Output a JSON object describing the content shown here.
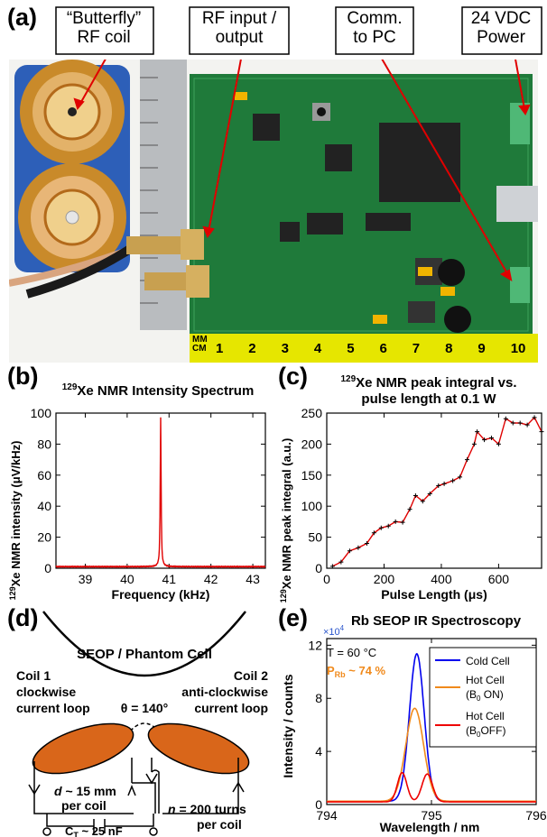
{
  "panel_a": {
    "letter": "(a)",
    "callouts": [
      {
        "line1": "“Butterfly”",
        "line2": "RF coil"
      },
      {
        "line1": "RF input /",
        "line2": "output"
      },
      {
        "line1": "Comm.",
        "line2": "to PC"
      },
      {
        "line1": "24 VDC",
        "line2": "Power"
      }
    ],
    "ruler": {
      "unit_top": "MM",
      "unit_bottom": "CM",
      "ticks": [
        "1",
        "2",
        "3",
        "4",
        "5",
        "6",
        "7",
        "8",
        "9",
        "10",
        "1"
      ]
    },
    "colors": {
      "board": "#1f7a3a",
      "ruler": "#e6e600",
      "coil": "#c98a2a",
      "arrow": "#e00000"
    }
  },
  "panel_b": {
    "letter": "(b)",
    "title_sup": "129",
    "title_rest": "Xe NMR Intensity Spectrum",
    "ylabel_sup": "129",
    "ylabel_rest": "Xe NMR intensity (μV/kHz)",
    "xlabel": "Frequency (kHz)"
  },
  "panel_c": {
    "letter": "(c)",
    "title_sup": "129",
    "title_line1_rest": "Xe NMR peak integral vs.",
    "title_line2": "pulse length at 0.1 W",
    "ylabel_sup": "129",
    "ylabel_rest": "Xe NMR peak integral (a.u.)",
    "xlabel": "Pulse Length (μs)"
  },
  "panel_d": {
    "letter": "(d)",
    "cell_label": "SEOP / Phantom Cell",
    "coil1": [
      "Coil 1",
      "clockwise",
      "current loop"
    ],
    "coil2": [
      "Coil 2",
      "anti-clockwise",
      "current loop"
    ],
    "theta": "θ = 140°",
    "d_label_var": "d",
    "d_label_rest": " ~ 15 mm",
    "d_label_line2": "per coil",
    "n_label_var": "n",
    "n_label_rest": " = 200 turns",
    "n_label_line2": "per coil",
    "ct_main": "C",
    "ct_sub": "T",
    "ct_rest": " ~ 25 nF",
    "coil_color": "#d9661a"
  },
  "panel_e": {
    "letter": "(e)",
    "title": "Rb SEOP IR Spectroscopy",
    "ylabel": "Intensity / counts",
    "xlabel": "Wavelength / nm",
    "multiplier_base": "×10",
    "multiplier_exp": "4",
    "temp_label": "T = 60 °C",
    "prb_main": "P",
    "prb_sub": "Rb",
    "prb_rest": " ~ 74 %",
    "legend": [
      {
        "line1": "Cold Cell",
        "line2": "",
        "color": "#0000ee"
      },
      {
        "line1": "Hot Cell",
        "line2": "(B0 ON)",
        "sub_line2_prefix": "(B",
        "sub_line2_sub": "0",
        "sub_line2_rest": " ON)",
        "color": "#f08a1c"
      },
      {
        "line1": "Hot Cell",
        "line2": "(B0OFF)",
        "sub_line2_prefix": "(B",
        "sub_line2_sub": "0",
        "sub_line2_rest": "OFF)",
        "color": "#ee0000"
      }
    ]
  },
  "chart_data": [
    {
      "type": "line",
      "panel": "b",
      "title": "129Xe NMR Intensity Spectrum",
      "xlabel": "Frequency (kHz)",
      "ylabel": "129Xe NMR intensity (μV/kHz)",
      "xlim": [
        38.3,
        43.3
      ],
      "ylim": [
        0,
        100
      ],
      "xticks": [
        "39",
        "40",
        "41",
        "42",
        "43"
      ],
      "yticks": [
        "0",
        "20",
        "40",
        "60",
        "80",
        "100"
      ],
      "color": "#e00000",
      "peak_center": 40.8,
      "peak_height": 97,
      "baseline": 1
    },
    {
      "type": "line",
      "panel": "c",
      "title": "129Xe NMR peak integral vs. pulse length at 0.1 W",
      "xlabel": "Pulse Length (μs)",
      "ylabel": "129Xe NMR peak integral (a.u.)",
      "xlim": [
        0,
        750
      ],
      "ylim": [
        0,
        250
      ],
      "xticks": [
        "0",
        "200",
        "400",
        "600"
      ],
      "yticks": [
        "0",
        "50",
        "100",
        "150",
        "200",
        "250"
      ],
      "color": "#e00000",
      "x": [
        20,
        50,
        80,
        110,
        140,
        165,
        190,
        215,
        240,
        265,
        290,
        310,
        335,
        360,
        390,
        410,
        440,
        465,
        490,
        515,
        525,
        550,
        575,
        600,
        625,
        650,
        675,
        700,
        725,
        750
      ],
      "y": [
        3,
        10,
        28,
        33,
        40,
        57,
        65,
        68,
        75,
        74,
        95,
        117,
        108,
        120,
        133,
        136,
        141,
        147,
        175,
        200,
        220,
        207,
        210,
        200,
        241,
        234,
        234,
        231,
        243,
        220
      ]
    },
    {
      "type": "line",
      "panel": "e",
      "title": "Rb SEOP IR Spectroscopy",
      "xlabel": "Wavelength / nm",
      "ylabel": "Intensity / counts",
      "xlim": [
        794,
        796
      ],
      "ylim": [
        0,
        12.5
      ],
      "xticks": [
        "794",
        "795",
        "796"
      ],
      "yticks": [
        "0",
        "4",
        "8",
        "12"
      ],
      "series": [
        {
          "name": "Cold Cell",
          "color": "#0000ee",
          "peaks": [
            {
              "center": 794.86,
              "height": 11.1,
              "width": 0.07
            }
          ],
          "baseline": 0.25
        },
        {
          "name": "Hot Cell (B0 ON)",
          "color": "#f08a1c",
          "peaks": [
            {
              "center": 794.84,
              "height": 7.0,
              "width": 0.085
            }
          ],
          "baseline": 0.25
        },
        {
          "name": "Hot Cell (B0OFF)",
          "color": "#ee0000",
          "peaks": [
            {
              "center": 794.72,
              "height": 2.2,
              "width": 0.045
            },
            {
              "center": 794.96,
              "height": 2.1,
              "width": 0.05
            }
          ],
          "baseline": 0.2
        }
      ]
    }
  ]
}
